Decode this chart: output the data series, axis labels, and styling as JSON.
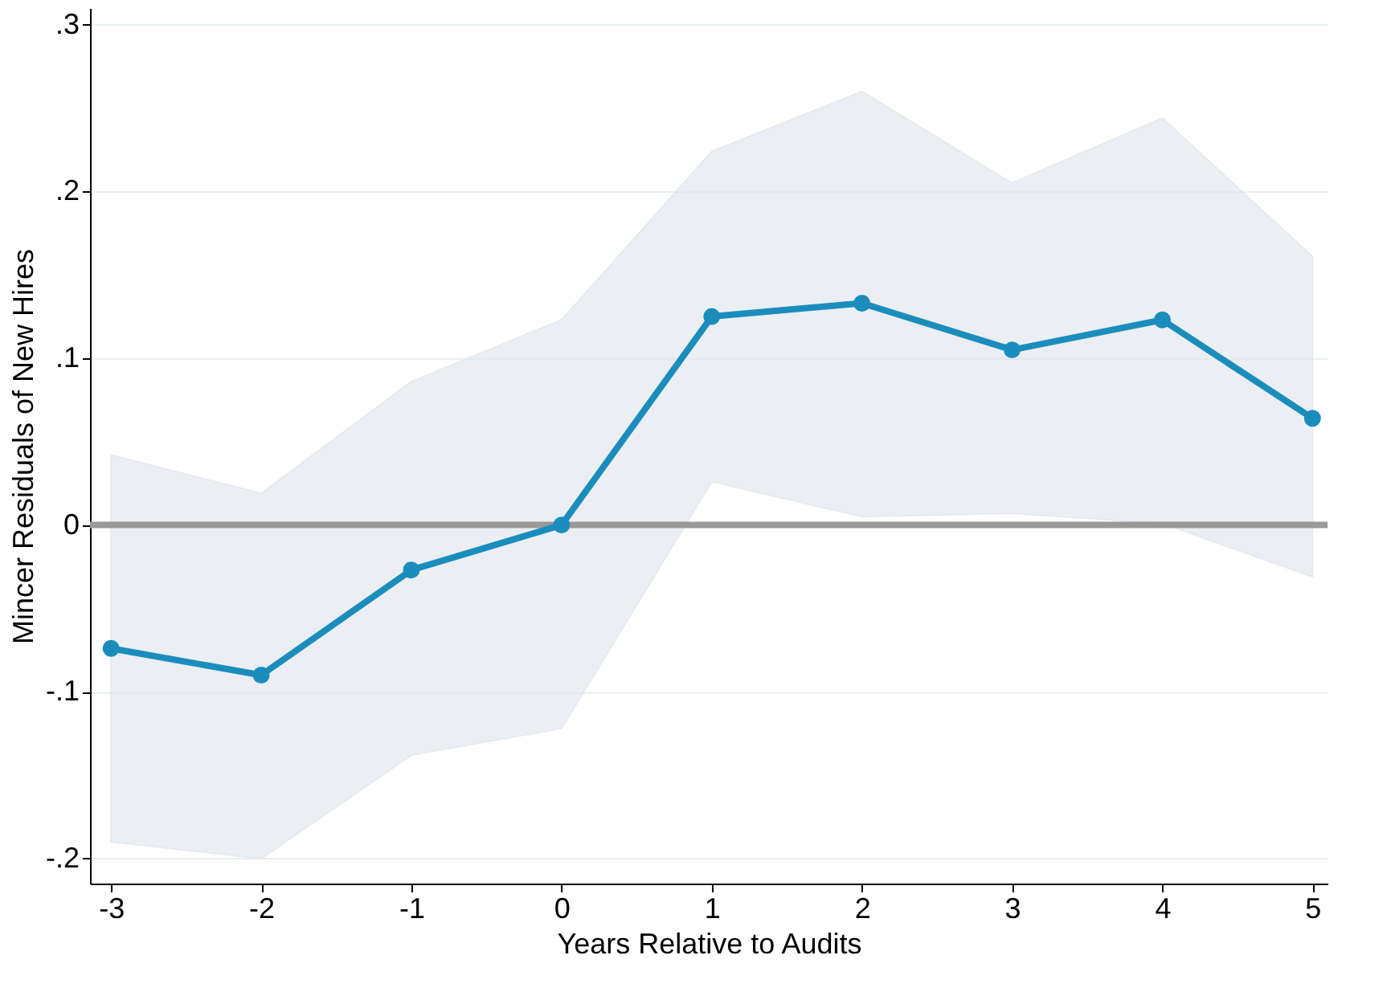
{
  "chart_data": {
    "type": "line",
    "xlabel": "Years Relative to Audits",
    "ylabel": "Mincer Residuals of New Hires",
    "x": [
      -3,
      -2,
      -1,
      0,
      1,
      2,
      3,
      4,
      5
    ],
    "series": [
      {
        "color": "#1b8dbd",
        "values": [
          -0.074,
          -0.09,
          -0.027,
          0,
          0.125,
          0.133,
          0.105,
          0.123,
          0.064
        ],
        "lower": [
          -0.19,
          -0.2,
          -0.138,
          -0.122,
          0.026,
          0.005,
          0.007,
          0.001,
          -0.031
        ],
        "upper": [
          0.042,
          0.019,
          0.086,
          0.123,
          0.224,
          0.26,
          0.205,
          0.244,
          0.161
        ]
      }
    ],
    "xlim": [
      -3.14,
      5.1
    ],
    "xticks": [
      -3,
      -2,
      -1,
      0,
      1,
      2,
      3,
      4,
      5
    ],
    "ylim": [
      -0.215,
      0.31
    ],
    "yticks": [
      {
        "value": -0.2,
        "label": "-.2"
      },
      {
        "value": -0.1,
        "label": "-.1"
      },
      0,
      {
        "value": 0.1,
        "label": ".1"
      },
      {
        "value": 0.2,
        "label": ".2"
      },
      {
        "value": 0.3,
        "label": ".3"
      }
    ],
    "ref_lines": [
      {
        "axis": "y",
        "value": 0,
        "color": "#999999"
      }
    ],
    "grid": "y",
    "marker": "circle",
    "line_style": "solid"
  }
}
